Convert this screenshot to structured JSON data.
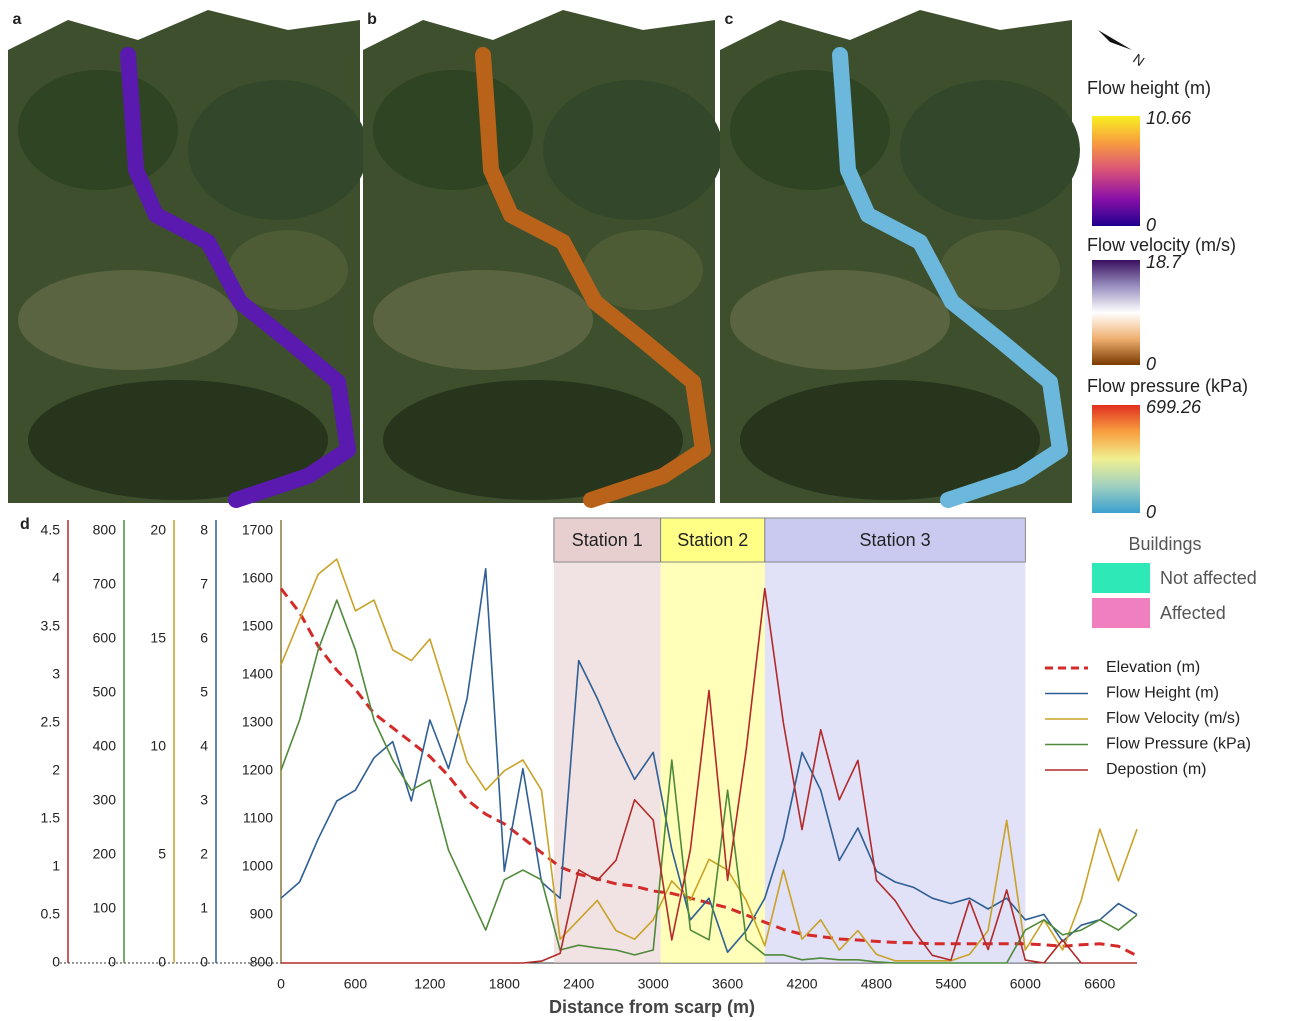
{
  "maps": [
    {
      "label": "a"
    },
    {
      "label": "b"
    },
    {
      "label": "c"
    }
  ],
  "north": "N",
  "colorbars": [
    {
      "title": "Flow height (m)",
      "max": 10.66,
      "min": 0,
      "colors": [
        "#f8f020",
        "#f89a40",
        "#d8507a",
        "#8a10a8",
        "#200090"
      ]
    },
    {
      "title": "Flow velocity (m/s)",
      "max": 18.7,
      "min": 0,
      "colors": [
        "#3a1060",
        "#9a90c0",
        "#ffffff",
        "#f0b070",
        "#7a3a00"
      ]
    },
    {
      "title": "Flow pressure (kPa)",
      "max": 699.26,
      "min": 0,
      "colors": [
        "#e03020",
        "#f8a040",
        "#f0f090",
        "#a0d0c0",
        "#3aa0d0"
      ]
    }
  ],
  "buildings": {
    "title": "Buildings",
    "items": [
      {
        "label": "Not affected",
        "color": "#2ee8b8"
      },
      {
        "label": "Affected",
        "color": "#f07fc0"
      }
    ]
  },
  "panel_label": "d",
  "chart_data": {
    "type": "line",
    "xlabel": "Distance from scarp (m)",
    "xlim": [
      0,
      6900
    ],
    "xticks": [
      0,
      600,
      1200,
      1800,
      2400,
      3000,
      3600,
      4200,
      4800,
      5400,
      6000,
      6600
    ],
    "ylim": [
      800,
      1700
    ],
    "yticks": [
      800,
      900,
      1000,
      1100,
      1200,
      1300,
      1400,
      1500,
      1600,
      1700
    ],
    "y2lim": [
      0,
      8
    ],
    "y2ticks": [
      0,
      1,
      2,
      3,
      4,
      5,
      6,
      7,
      8
    ],
    "y3lim": [
      0,
      20
    ],
    "y3ticks": [
      0,
      5,
      10,
      15,
      20
    ],
    "y4lim": [
      0,
      800
    ],
    "y4ticks": [
      0,
      100,
      200,
      300,
      400,
      500,
      600,
      700,
      800
    ],
    "y5lim": [
      0,
      4.5
    ],
    "y5ticks": [
      0,
      0.5,
      1,
      1.5,
      2,
      2.5,
      3,
      3.5,
      4,
      4.5
    ],
    "regions": [
      {
        "label": "Station 1",
        "x": [
          2200,
          3060
        ],
        "color": "#e6cccc"
      },
      {
        "label": "Station 2",
        "x": [
          3060,
          3900
        ],
        "color": "#ffff80"
      },
      {
        "label": "Station 3",
        "x": [
          3900,
          6000
        ],
        "color": "#c8c8f0"
      }
    ],
    "x": [
      0,
      150,
      300,
      450,
      600,
      750,
      900,
      1050,
      1200,
      1350,
      1500,
      1650,
      1800,
      1950,
      2100,
      2250,
      2400,
      2550,
      2700,
      2850,
      3000,
      3150,
      3300,
      3450,
      3600,
      3750,
      3900,
      4050,
      4200,
      4350,
      4500,
      4650,
      4800,
      4950,
      5100,
      5250,
      5400,
      5550,
      5700,
      5850,
      6000,
      6150,
      6300,
      6450,
      6600,
      6750,
      6900
    ],
    "series": [
      {
        "name": "Elevation (m)",
        "color": "#d42a2a",
        "style": "dashed",
        "values": [
          1580,
          1530,
          1460,
          1410,
          1370,
          1320,
          1290,
          1260,
          1230,
          1190,
          1140,
          1110,
          1090,
          1060,
          1030,
          1000,
          985,
          975,
          965,
          960,
          950,
          945,
          935,
          925,
          915,
          900,
          885,
          870,
          860,
          855,
          850,
          848,
          845,
          843,
          842,
          840,
          840,
          840,
          840,
          840,
          840,
          838,
          835,
          838,
          840,
          835,
          815
        ]
      },
      {
        "name": "Flow Height (m)",
        "color": "#2f5f94",
        "axis": "y2",
        "values": [
          1.2,
          1.5,
          2.3,
          3.0,
          3.2,
          3.8,
          4.1,
          3.0,
          4.5,
          3.6,
          4.9,
          7.3,
          1.7,
          3.6,
          1.5,
          1.2,
          5.6,
          4.9,
          4.1,
          3.4,
          3.9,
          2.1,
          0.8,
          1.2,
          0.2,
          0.6,
          1.2,
          2.3,
          3.9,
          3.2,
          1.9,
          2.5,
          1.7,
          1.5,
          1.4,
          1.2,
          1.1,
          1.2,
          1.0,
          1.2,
          0.8,
          0.9,
          0.4,
          0.7,
          0.8,
          1.1,
          0.9
        ]
      },
      {
        "name": "Flow Velocity (m/s)",
        "color": "#c9a227",
        "axis": "y3",
        "values": [
          13.8,
          15.9,
          18.0,
          18.7,
          16.3,
          16.8,
          14.5,
          14.0,
          15.0,
          12.2,
          9.3,
          8.0,
          8.9,
          9.4,
          8.0,
          1.1,
          2.0,
          2.9,
          1.5,
          1.1,
          2.0,
          3.8,
          2.9,
          4.8,
          4.3,
          2.9,
          0.8,
          4.3,
          1.1,
          2.0,
          0.6,
          1.5,
          0.4,
          0.1,
          0.1,
          0.1,
          0.1,
          0.4,
          1.5,
          6.6,
          0.6,
          2.0,
          0.6,
          2.9,
          6.2,
          3.8,
          6.2
        ]
      },
      {
        "name": "Flow Pressure (kPa)",
        "color": "#4f8a3a",
        "axis": "y4",
        "values": [
          357,
          450,
          580,
          672,
          580,
          450,
          376,
          320,
          339,
          209,
          135,
          61,
          154,
          172,
          154,
          24,
          33,
          28,
          24,
          15,
          24,
          376,
          61,
          43,
          320,
          43,
          15,
          15,
          6,
          9,
          6,
          6,
          2,
          0,
          0,
          0,
          0,
          0,
          0,
          0,
          61,
          80,
          52,
          61,
          80,
          61,
          89
        ]
      },
      {
        "name": "Depostion (m)",
        "color": "#b22a2a",
        "axis": "y5",
        "values": [
          0,
          0,
          0,
          0,
          0,
          0,
          0,
          0,
          0,
          0,
          0,
          0,
          0,
          0,
          0.02,
          0.1,
          0.97,
          0.86,
          1.07,
          1.7,
          1.49,
          0.24,
          1.18,
          2.84,
          0.86,
          2.22,
          3.9,
          2.5,
          1.39,
          2.43,
          1.7,
          2.11,
          0.86,
          0.65,
          0.34,
          0.08,
          0.03,
          0.65,
          0.14,
          0.76,
          0.03,
          0,
          0.24,
          0,
          0,
          0,
          0
        ]
      }
    ]
  }
}
